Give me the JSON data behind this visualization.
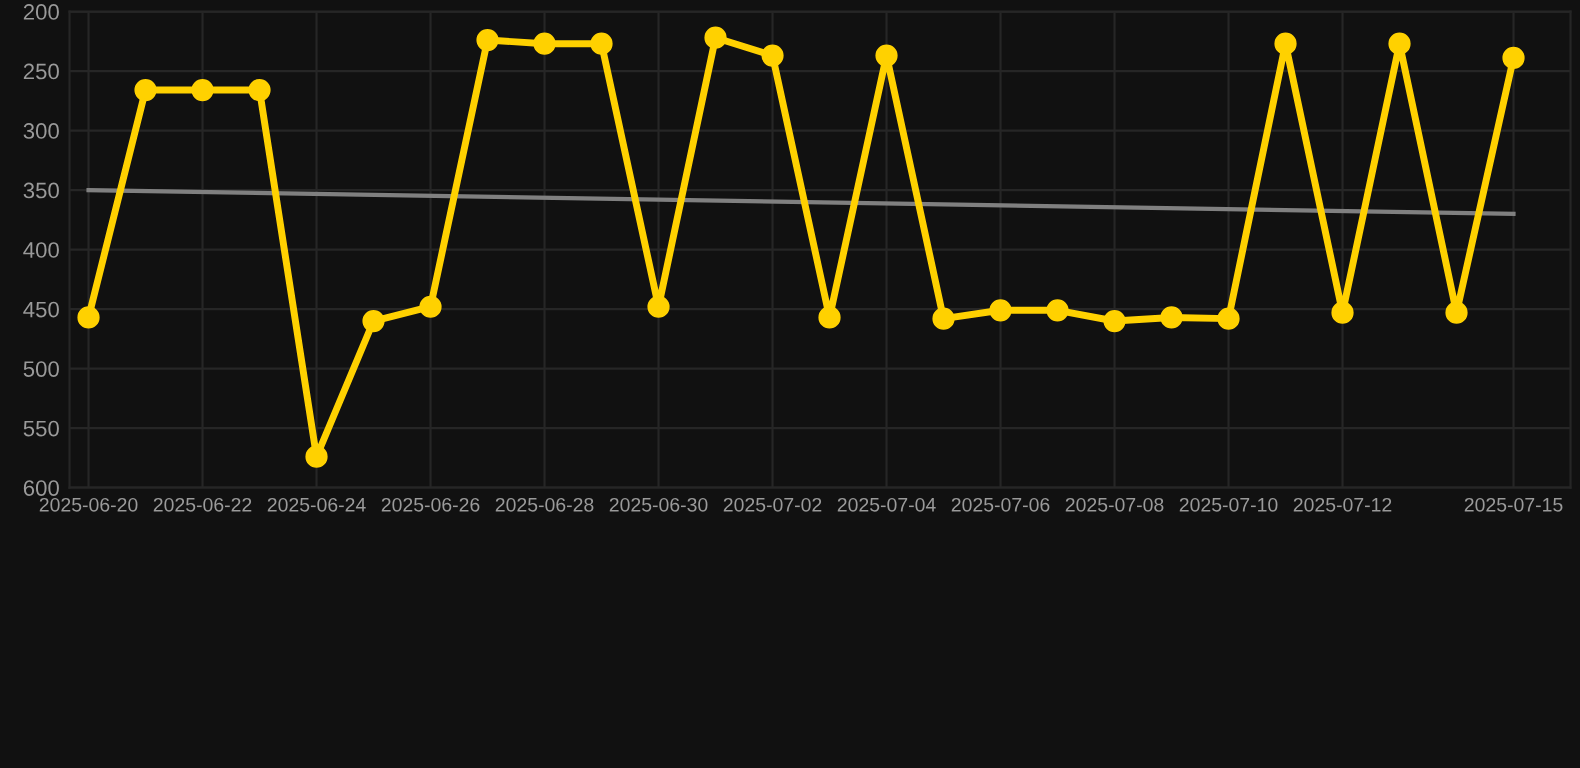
{
  "chart_data": {
    "type": "line",
    "x": [
      "2025-06-20",
      "2025-06-21",
      "2025-06-22",
      "2025-06-23",
      "2025-06-24",
      "2025-06-25",
      "2025-06-26",
      "2025-06-27",
      "2025-06-28",
      "2025-06-29",
      "2025-06-30",
      "2025-07-01",
      "2025-07-02",
      "2025-07-03",
      "2025-07-04",
      "2025-07-05",
      "2025-07-06",
      "2025-07-07",
      "2025-07-08",
      "2025-07-09",
      "2025-07-10",
      "2025-07-11",
      "2025-07-12",
      "2025-07-13",
      "2025-07-14",
      "2025-07-15"
    ],
    "series": [
      {
        "color": "#ffd100",
        "marker": "circle",
        "values": [
          457,
          266,
          266,
          266,
          574,
          460,
          448,
          224,
          227,
          227,
          448,
          222,
          237,
          457,
          237,
          458,
          451,
          451,
          460,
          457,
          458,
          227,
          453,
          227,
          453,
          239
        ]
      },
      {
        "type": "line",
        "color": "#808080",
        "marker": "none",
        "x": [
          "2025-06-20",
          "2025-07-15"
        ],
        "values": [
          350,
          370
        ]
      }
    ],
    "ylim": [
      600,
      200
    ],
    "yticks": [
      200,
      250,
      300,
      350,
      400,
      450,
      500,
      550,
      600
    ],
    "xlim": [
      "2025-06-19T16:00",
      "2025-07-16"
    ],
    "xticks": [
      "2025-06-20",
      "2025-06-22",
      "2025-06-24",
      "2025-06-26",
      "2025-06-28",
      "2025-06-30",
      "2025-07-02",
      "2025-07-04",
      "2025-07-06",
      "2025-07-08",
      "2025-07-10",
      "2025-07-12",
      "2025-07-15"
    ],
    "grid": true
  }
}
